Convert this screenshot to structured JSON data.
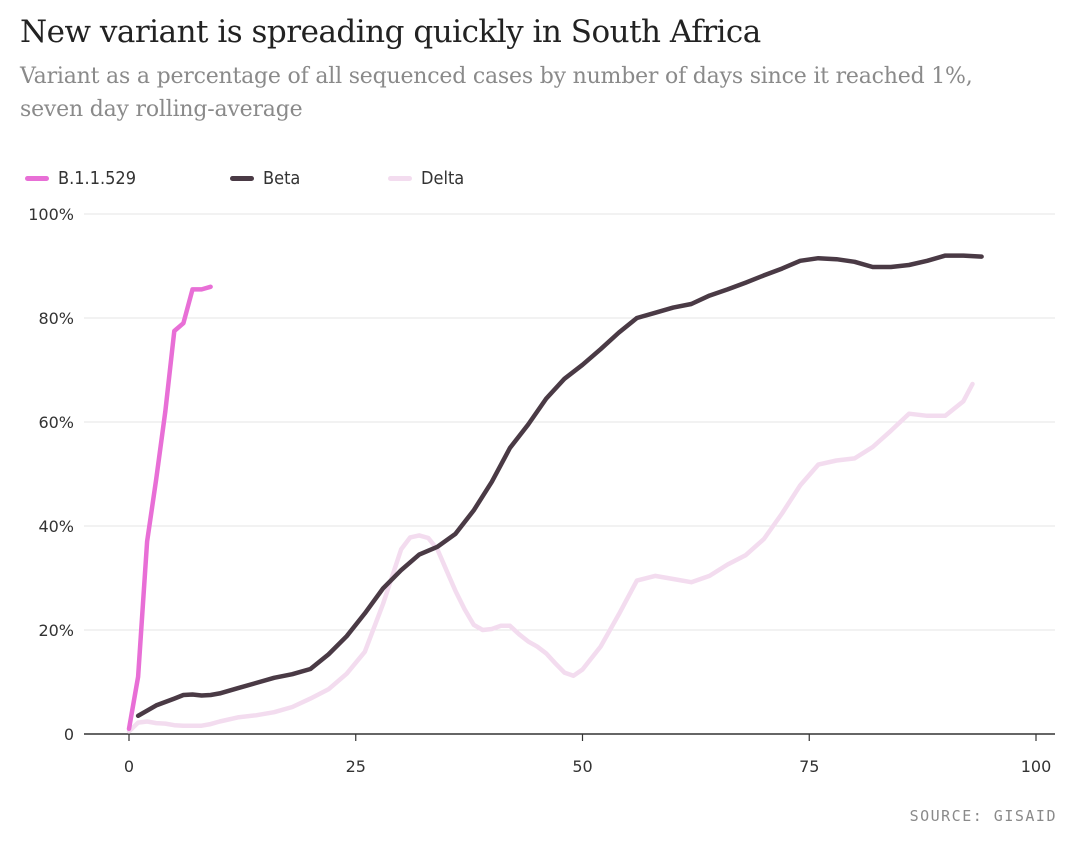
{
  "colors": {
    "b11529": "#e86fd6",
    "beta": "#4a3a45",
    "delta": "#f3dcef",
    "grid": "#e6e6e6",
    "axis": "#333333"
  },
  "chart_data": {
    "type": "line",
    "title": "New variant is spreading quickly in South Africa",
    "subtitle": "Variant as a percentage of all sequenced cases by number of days since it reached 1%, seven day rolling-average",
    "xlabel": "",
    "ylabel": "",
    "xlim": [
      0,
      100
    ],
    "ylim": [
      0,
      100
    ],
    "xticks": [
      0,
      25,
      50,
      75,
      100
    ],
    "xtick_labels": [
      "0",
      "25",
      "50",
      "75",
      "100"
    ],
    "yticks": [
      0,
      20,
      40,
      60,
      80,
      100
    ],
    "ytick_labels": [
      "0",
      "20%",
      "40%",
      "60%",
      "80%",
      "100%"
    ],
    "legend_position": "top-left",
    "source": "SOURCE: GISAID",
    "series": [
      {
        "key": "b11529",
        "name": "B.1.1.529",
        "x": [
          0,
          1,
          2,
          3,
          4,
          5,
          6,
          7,
          8,
          9
        ],
        "y": [
          1,
          11,
          37,
          49,
          62,
          77.5,
          79,
          85.5,
          85.5,
          86
        ]
      },
      {
        "key": "beta",
        "name": "Beta",
        "x": [
          1,
          3,
          5,
          6,
          7,
          8,
          9,
          10,
          12,
          14,
          16,
          18,
          20,
          22,
          24,
          26,
          28,
          30,
          32,
          34,
          36,
          38,
          40,
          42,
          44,
          46,
          48,
          50,
          52,
          54,
          56,
          58,
          60,
          62,
          64,
          66,
          68,
          70,
          72,
          74,
          76,
          78,
          80,
          82,
          84,
          86,
          88,
          90,
          92,
          94
        ],
        "y": [
          3.5,
          5.5,
          6.8,
          7.5,
          7.6,
          7.4,
          7.5,
          7.8,
          8.8,
          9.8,
          10.8,
          11.5,
          12.5,
          15.3,
          18.8,
          23.2,
          28,
          31.5,
          34.5,
          36,
          38.5,
          43,
          48.5,
          55,
          59.5,
          64.5,
          68.3,
          71,
          74,
          77.2,
          80,
          81,
          82,
          82.7,
          84.3,
          85.5,
          86.8,
          88.2,
          89.5,
          91,
          91.5,
          91.3,
          90.8,
          89.8,
          89.8,
          90.2,
          91,
          92,
          92,
          91.8
        ]
      },
      {
        "key": "delta",
        "name": "Delta",
        "x": [
          0,
          1,
          2,
          3,
          4,
          5,
          6,
          8,
          9,
          10,
          12,
          14,
          16,
          18,
          20,
          22,
          24,
          26,
          28,
          30,
          31,
          32,
          33,
          34,
          35,
          36,
          37,
          38,
          39,
          40,
          41,
          42,
          43,
          44,
          45,
          46,
          47,
          48,
          49,
          50,
          52,
          54,
          56,
          58,
          60,
          62,
          64,
          66,
          68,
          70,
          72,
          74,
          76,
          78,
          80,
          82,
          84,
          86,
          88,
          90,
          92,
          93
        ],
        "y": [
          0.5,
          2.2,
          2.4,
          2.1,
          2,
          1.7,
          1.6,
          1.6,
          1.9,
          2.4,
          3.2,
          3.6,
          4.2,
          5.2,
          6.8,
          8.6,
          11.6,
          15.8,
          25,
          35.5,
          37.8,
          38.2,
          37.7,
          35.5,
          31.5,
          27.5,
          24,
          21,
          20,
          20.2,
          20.8,
          20.8,
          19.2,
          17.8,
          16.8,
          15.5,
          13.6,
          11.8,
          11.2,
          12.4,
          16.8,
          23,
          29.5,
          30.4,
          29.8,
          29.2,
          30.4,
          32.6,
          34.4,
          37.5,
          42.4,
          47.8,
          51.8,
          52.6,
          53,
          55.2,
          58.3,
          61.6,
          61.2,
          61.2,
          64,
          67.3
        ]
      }
    ]
  }
}
